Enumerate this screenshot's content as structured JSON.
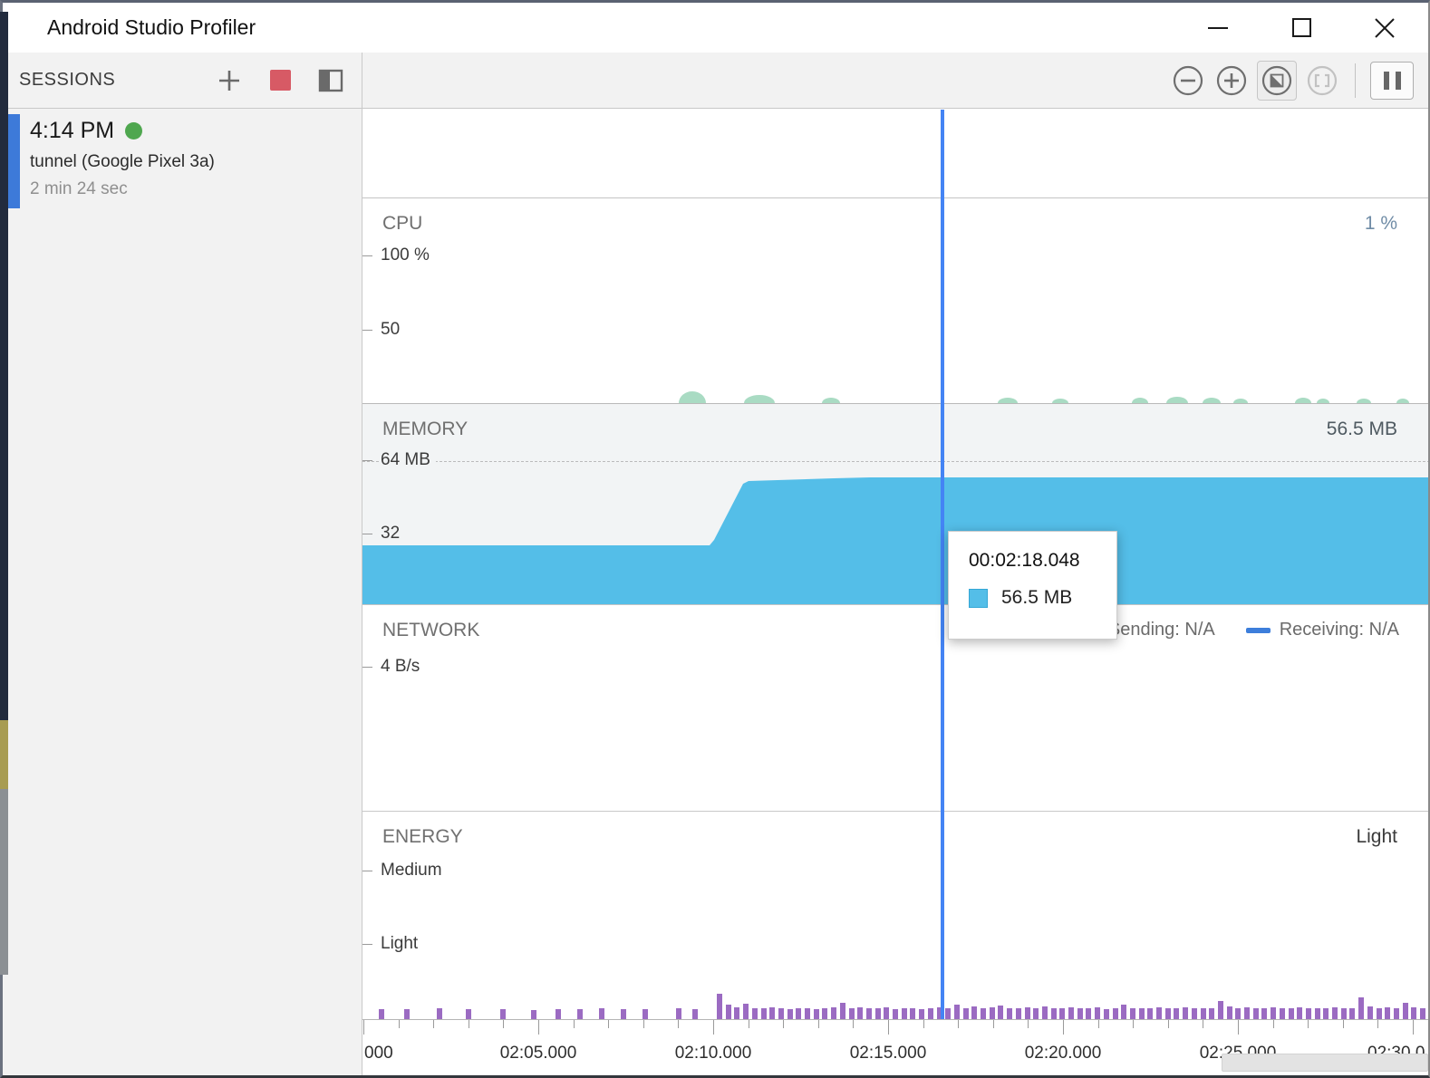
{
  "window": {
    "title": "Android Studio Profiler"
  },
  "sessions_panel": {
    "header": "SESSIONS",
    "session": {
      "time": "4:14 PM",
      "device": "tunnel (Google Pixel 3a)",
      "duration": "2 min 24 sec",
      "selected": true
    }
  },
  "charts": {
    "cpu": {
      "label": "CPU",
      "current_value": "1 %",
      "y_ticks": [
        {
          "label": "100 %",
          "y": 64
        },
        {
          "label": "50",
          "y": 146
        }
      ],
      "bumps": [
        [
          349,
          30,
          13
        ],
        [
          421,
          34,
          9
        ],
        [
          507,
          20,
          6
        ],
        [
          701,
          22,
          6
        ],
        [
          761,
          18,
          5
        ],
        [
          849,
          18,
          6
        ],
        [
          887,
          24,
          7
        ],
        [
          927,
          20,
          6
        ],
        [
          961,
          16,
          5
        ],
        [
          1029,
          18,
          6
        ],
        [
          1053,
          14,
          5
        ],
        [
          1097,
          16,
          5
        ],
        [
          1141,
          14,
          5
        ]
      ]
    },
    "memory": {
      "label": "MEMORY",
      "current_value": "56.5 MB",
      "y_ticks": [
        {
          "label": "64 MB",
          "y": 63
        },
        {
          "label": "32",
          "y": 144
        }
      ],
      "threshold_y": 63,
      "area_points": [
        [
          0,
          156
        ],
        [
          383,
          156
        ],
        [
          388,
          150
        ],
        [
          420,
          88
        ],
        [
          426,
          85
        ],
        [
          520,
          82
        ],
        [
          560,
          81
        ],
        [
          1178,
          81
        ]
      ]
    },
    "network": {
      "label": "NETWORK",
      "y_ticks": [
        {
          "label": "4 B/s",
          "y": 69
        }
      ],
      "legend": {
        "sending": "Sending: N/A",
        "receiving": "Receiving: N/A"
      }
    },
    "energy": {
      "label": "ENERGY",
      "current_value": "Light",
      "y_ticks": [
        {
          "label": "Medium",
          "y": 66
        },
        {
          "label": "Light",
          "y": 147
        }
      ],
      "sparse_bars": [
        [
          18,
          11
        ],
        [
          46,
          11
        ],
        [
          82,
          12
        ],
        [
          114,
          11
        ],
        [
          152,
          11
        ],
        [
          186,
          10
        ],
        [
          213,
          11
        ],
        [
          237,
          11
        ],
        [
          261,
          12
        ],
        [
          285,
          11
        ],
        [
          309,
          11
        ],
        [
          346,
          12
        ],
        [
          364,
          11
        ]
      ],
      "dense_bars": {
        "start": 391,
        "step": 9.7,
        "heights": [
          28,
          16,
          13,
          17,
          12,
          12,
          13,
          12,
          11,
          12,
          12,
          11,
          12,
          13,
          18,
          12,
          13,
          12,
          12,
          13,
          11,
          12,
          12,
          11,
          12,
          13,
          12,
          16,
          12,
          14,
          12,
          13,
          15,
          12,
          12,
          13,
          12,
          14,
          12,
          12,
          13,
          12,
          12,
          13,
          11,
          12,
          16,
          12,
          12,
          12,
          13,
          12,
          12,
          13,
          12,
          12,
          12,
          20,
          14,
          12,
          13,
          12,
          12,
          13,
          12,
          12,
          13,
          12,
          12,
          12,
          13,
          12,
          12,
          24,
          14,
          12,
          13,
          12,
          18,
          13,
          12
        ]
      }
    },
    "timeline": {
      "labels": [
        {
          "text": "000",
          "x": 2,
          "align": "left"
        },
        {
          "text": "02:05.000",
          "x": 194,
          "align": "center"
        },
        {
          "text": "02:10.000",
          "x": 387,
          "align": "center"
        },
        {
          "text": "02:15.000",
          "x": 580,
          "align": "center"
        },
        {
          "text": "02:20.000",
          "x": 773,
          "align": "center"
        },
        {
          "text": "02:25.000",
          "x": 966,
          "align": "center"
        },
        {
          "text": "02:30.0",
          "x": 1109,
          "align": "left"
        }
      ],
      "tick_start": 1,
      "tick_step": 38.6,
      "tick_count": 31,
      "major_every": 5
    },
    "selection_line_x": 638,
    "tooltip": {
      "time": "00:02:18.048",
      "value": "56.5 MB"
    }
  },
  "colors": {
    "memory_area": "#54bee8",
    "energy_bar": "#9b6bc2",
    "cpu_bump": "#a9dbc3",
    "selection_line": "#4484f4",
    "receiving_swatch": "#3d7edb",
    "sending_swatch": "#3d7edb",
    "session_status": "#4fa74f",
    "session_accent": "#3d7ad9",
    "stop_button": "#d75a65",
    "tooltip_swatch": "#54bee8"
  }
}
